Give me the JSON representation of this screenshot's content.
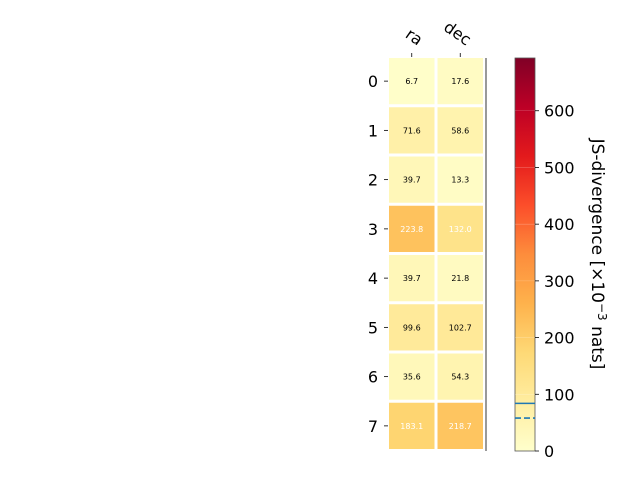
{
  "chart_data": {
    "type": "heatmap",
    "columns": [
      "ra",
      "dec"
    ],
    "rows": [
      "0",
      "1",
      "2",
      "3",
      "4",
      "5",
      "6",
      "7"
    ],
    "values": [
      [
        6.7,
        17.6
      ],
      [
        71.6,
        58.6
      ],
      [
        39.7,
        13.3
      ],
      [
        223.8,
        132.0
      ],
      [
        39.7,
        21.8
      ],
      [
        99.6,
        102.7
      ],
      [
        35.6,
        54.3
      ],
      [
        183.1,
        218.7
      ]
    ],
    "cell_labels": [
      [
        "6.7",
        "17.6"
      ],
      [
        "71.6",
        "58.6"
      ],
      [
        "39.7",
        "13.3"
      ],
      [
        "223.8",
        "132.0"
      ],
      [
        "39.7",
        "21.8"
      ],
      [
        "99.6",
        "102.7"
      ],
      [
        "35.6",
        "54.3"
      ],
      [
        "183.1",
        "218.7"
      ]
    ],
    "colorbar": {
      "label": "JS-divergence [×10⁻³ nats]",
      "label_main": "JS-divergence [×10",
      "label_exp": "−3",
      "label_tail": " nats]",
      "range": [
        0,
        693
      ],
      "ticks": [
        0,
        100,
        200,
        300,
        400,
        500,
        600
      ],
      "tick_labels": [
        "0",
        "100",
        "200",
        "300",
        "400",
        "500",
        "600"
      ],
      "colormap": "YlOrRd",
      "reference_lines": [
        {
          "value": 84,
          "style": "solid",
          "color": "#1f77b4"
        },
        {
          "value": 58,
          "style": "dashed",
          "color": "#1f77b4"
        }
      ]
    },
    "grid": false
  }
}
